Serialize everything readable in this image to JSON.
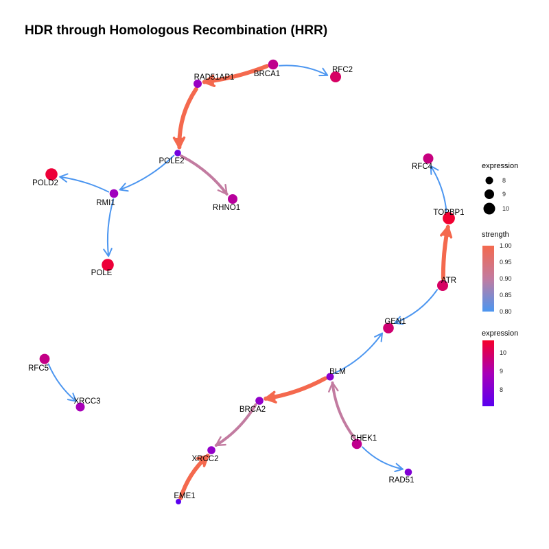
{
  "title": "HDR through Homologous Recombination (HRR)",
  "colors": {
    "strength_low": "#4c96f0",
    "strength_mid": "#c27ba0",
    "strength_high": "#f4694e",
    "expression_low": "#5a00f0",
    "expression_mid": "#a800b8",
    "expression_high": "#f5002a"
  },
  "legend": {
    "size": {
      "title": "expression",
      "items": [
        8,
        9,
        10
      ]
    },
    "strength": {
      "title": "strength",
      "ticks": [
        "1.00",
        "0.95",
        "0.90",
        "0.85",
        "0.80"
      ]
    },
    "color": {
      "title": "expression",
      "ticks": [
        "10",
        "9",
        "8"
      ]
    }
  },
  "nodes": [
    {
      "id": "BRCA1",
      "label": "BRCA1",
      "expression": 9.6
    },
    {
      "id": "RAD51AP1",
      "label": "RAD51AP1",
      "expression": 8.6
    },
    {
      "id": "RFC2",
      "label": "RFC2",
      "expression": 10.2
    },
    {
      "id": "POLE2",
      "label": "POLE2",
      "expression": 7.6
    },
    {
      "id": "POLD2",
      "label": "POLD2",
      "expression": 10.8
    },
    {
      "id": "RMI1",
      "label": "RMI1",
      "expression": 8.8
    },
    {
      "id": "RHNO1",
      "label": "RHNO1",
      "expression": 9.4
    },
    {
      "id": "POLE",
      "label": "POLE",
      "expression": 10.8
    },
    {
      "id": "RFC4",
      "label": "RFC4",
      "expression": 9.8
    },
    {
      "id": "TOPBP1",
      "label": "TOPBP1",
      "expression": 10.9
    },
    {
      "id": "ATR",
      "label": "ATR",
      "expression": 10.2
    },
    {
      "id": "GEN1",
      "label": "GEN1",
      "expression": 10.0
    },
    {
      "id": "BLM",
      "label": "BLM",
      "expression": 8.2
    },
    {
      "id": "BRCA2",
      "label": "BRCA2",
      "expression": 8.4
    },
    {
      "id": "CHEK1",
      "label": "CHEK1",
      "expression": 9.6
    },
    {
      "id": "XRCC2",
      "label": "XRCC2",
      "expression": 8.4
    },
    {
      "id": "RAD51",
      "label": "RAD51",
      "expression": 8.0
    },
    {
      "id": "EME1",
      "label": "EME1",
      "expression": 7.0
    },
    {
      "id": "RFC5",
      "label": "RFC5",
      "expression": 9.7
    },
    {
      "id": "XRCC3",
      "label": "XRCC3",
      "expression": 9.0
    }
  ],
  "edges": [
    {
      "from": "BRCA1",
      "to": "RAD51AP1",
      "strength": 1.0
    },
    {
      "from": "BRCA1",
      "to": "RFC2",
      "strength": 0.8
    },
    {
      "from": "RAD51AP1",
      "to": "POLE2",
      "strength": 1.0
    },
    {
      "from": "POLE2",
      "to": "RMI1",
      "strength": 0.8
    },
    {
      "from": "POLE2",
      "to": "RHNO1",
      "strength": 0.9
    },
    {
      "from": "RMI1",
      "to": "POLD2",
      "strength": 0.8
    },
    {
      "from": "RMI1",
      "to": "POLE",
      "strength": 0.8
    },
    {
      "from": "TOPBP1",
      "to": "RFC4",
      "strength": 0.8
    },
    {
      "from": "ATR",
      "to": "TOPBP1",
      "strength": 1.0
    },
    {
      "from": "ATR",
      "to": "GEN1",
      "strength": 0.8
    },
    {
      "from": "BLM",
      "to": "GEN1",
      "strength": 0.8
    },
    {
      "from": "BLM",
      "to": "BRCA2",
      "strength": 1.0
    },
    {
      "from": "CHEK1",
      "to": "BLM",
      "strength": 0.9
    },
    {
      "from": "CHEK1",
      "to": "RAD51",
      "strength": 0.8
    },
    {
      "from": "BRCA2",
      "to": "XRCC2",
      "strength": 0.9
    },
    {
      "from": "EME1",
      "to": "XRCC2",
      "strength": 1.0
    },
    {
      "from": "RFC5",
      "to": "XRCC3",
      "strength": 0.8
    }
  ]
}
